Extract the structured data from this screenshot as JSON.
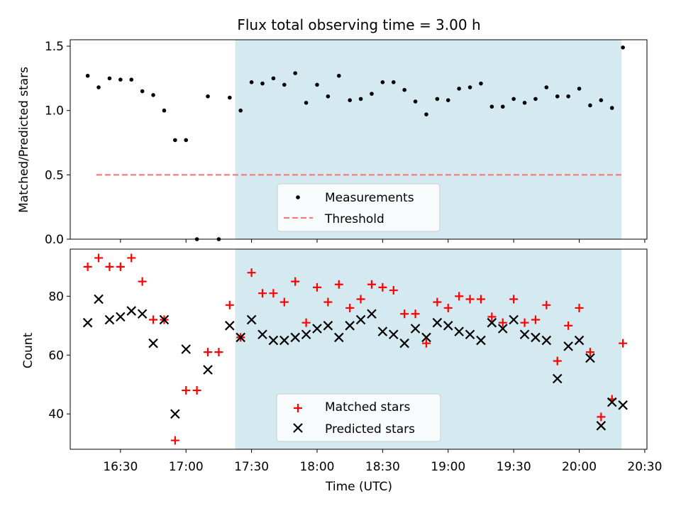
{
  "chart_data": {
    "type": "scatter",
    "title": "Flux total observing time = 3.00 h",
    "xlabel": "Time (UTC)",
    "x_ticks": [
      "16:30",
      "17:00",
      "17:30",
      "18:00",
      "18:30",
      "19:00",
      "19:30",
      "20:00",
      "20:30"
    ],
    "xlim": [
      "16:07",
      "20:31"
    ],
    "shaded_region": {
      "x_start": "17:20",
      "x_end": "20:20",
      "color": "#add8e6"
    },
    "colors": {
      "measurements": "#000000",
      "threshold": "#f08080",
      "matched": "#ff0000",
      "predicted": "#000000",
      "shade": "#d4eaf0"
    },
    "panels": [
      {
        "ylabel": "Matched/Predicted stars",
        "ylim": [
          0,
          1.55
        ],
        "y_ticks": [
          "0.0",
          "0.5",
          "1.0",
          "1.5"
        ],
        "legend": {
          "position": "lower center",
          "entries": [
            "Measurements",
            "Threshold"
          ]
        },
        "series": [
          {
            "name": "Measurements",
            "marker": "dot",
            "x": [
              "16:15",
              "16:20",
              "16:25",
              "16:30",
              "16:35",
              "16:40",
              "16:45",
              "16:50",
              "16:55",
              "17:00",
              "17:05",
              "17:10",
              "17:15",
              "17:20",
              "17:25",
              "17:30",
              "17:35",
              "17:40",
              "17:45",
              "17:50",
              "17:55",
              "18:00",
              "18:05",
              "18:10",
              "18:15",
              "18:20",
              "18:25",
              "18:30",
              "18:35",
              "18:40",
              "18:45",
              "18:50",
              "18:55",
              "19:00",
              "19:05",
              "19:10",
              "19:15",
              "19:20",
              "19:25",
              "19:30",
              "19:35",
              "19:40",
              "19:45",
              "19:50",
              "19:55",
              "20:00",
              "20:05",
              "20:10",
              "20:15",
              "20:20"
            ],
            "y": [
              1.27,
              1.18,
              1.25,
              1.24,
              1.24,
              1.15,
              1.12,
              1.0,
              0.77,
              0.77,
              0.0,
              1.11,
              0.0,
              1.1,
              1.0,
              1.22,
              1.21,
              1.25,
              1.2,
              1.29,
              1.06,
              1.2,
              1.11,
              1.27,
              1.08,
              1.09,
              1.13,
              1.22,
              1.22,
              1.16,
              1.07,
              0.97,
              1.09,
              1.08,
              1.17,
              1.18,
              1.21,
              1.03,
              1.03,
              1.09,
              1.06,
              1.09,
              1.18,
              1.11,
              1.11,
              1.17,
              1.04,
              1.08,
              1.02,
              1.49
            ]
          },
          {
            "name": "Threshold",
            "marker": "dashed-line",
            "x": [
              "16:15",
              "20:20"
            ],
            "y": [
              0.5,
              0.5
            ]
          }
        ]
      },
      {
        "ylabel": "Count",
        "ylim": [
          28,
          96
        ],
        "y_ticks": [
          "40",
          "60",
          "80"
        ],
        "legend": {
          "position": "lower center",
          "entries": [
            "Matched stars",
            "Predicted stars"
          ]
        },
        "series": [
          {
            "name": "Matched stars",
            "marker": "plus",
            "x": [
              "16:15",
              "16:20",
              "16:25",
              "16:30",
              "16:35",
              "16:40",
              "16:45",
              "16:50",
              "16:55",
              "17:00",
              "17:05",
              "17:10",
              "17:15",
              "17:20",
              "17:25",
              "17:30",
              "17:35",
              "17:40",
              "17:45",
              "17:50",
              "17:55",
              "18:00",
              "18:05",
              "18:10",
              "18:15",
              "18:20",
              "18:25",
              "18:30",
              "18:35",
              "18:40",
              "18:45",
              "18:50",
              "18:55",
              "19:00",
              "19:05",
              "19:10",
              "19:15",
              "19:20",
              "19:25",
              "19:30",
              "19:35",
              "19:40",
              "19:45",
              "19:50",
              "19:55",
              "20:00",
              "20:05",
              "20:10",
              "20:15",
              "20:20"
            ],
            "y": [
              90,
              93,
              90,
              90,
              93,
              85,
              72,
              72,
              31,
              48,
              48,
              61,
              61,
              77,
              66,
              88,
              81,
              81,
              78,
              85,
              71,
              83,
              78,
              84,
              76,
              79,
              84,
              83,
              82,
              74,
              74,
              64,
              78,
              76,
              80,
              79,
              79,
              73,
              71,
              79,
              71,
              72,
              77,
              58,
              70,
              76,
              61,
              39,
              45,
              64
            ]
          },
          {
            "name": "Predicted stars",
            "marker": "x",
            "x": [
              "16:15",
              "16:20",
              "16:25",
              "16:30",
              "16:35",
              "16:40",
              "16:45",
              "16:50",
              "16:55",
              "17:00",
              "17:10",
              "17:20",
              "17:25",
              "17:30",
              "17:35",
              "17:40",
              "17:45",
              "17:50",
              "17:55",
              "18:00",
              "18:05",
              "18:10",
              "18:15",
              "18:20",
              "18:25",
              "18:30",
              "18:35",
              "18:40",
              "18:45",
              "18:50",
              "18:55",
              "19:00",
              "19:05",
              "19:10",
              "19:15",
              "19:20",
              "19:25",
              "19:30",
              "19:35",
              "19:40",
              "19:45",
              "19:50",
              "19:55",
              "20:00",
              "20:05",
              "20:10",
              "20:15",
              "20:20"
            ],
            "y": [
              71,
              79,
              72,
              73,
              75,
              74,
              64,
              72,
              40,
              62,
              55,
              70,
              66,
              72,
              67,
              65,
              65,
              66,
              67,
              69,
              70,
              66,
              70,
              72,
              74,
              68,
              67,
              64,
              69,
              66,
              71,
              70,
              68,
              67,
              65,
              71,
              69,
              72,
              67,
              66,
              65,
              52,
              63,
              65,
              59,
              36,
              44,
              43
            ]
          }
        ]
      }
    ]
  }
}
